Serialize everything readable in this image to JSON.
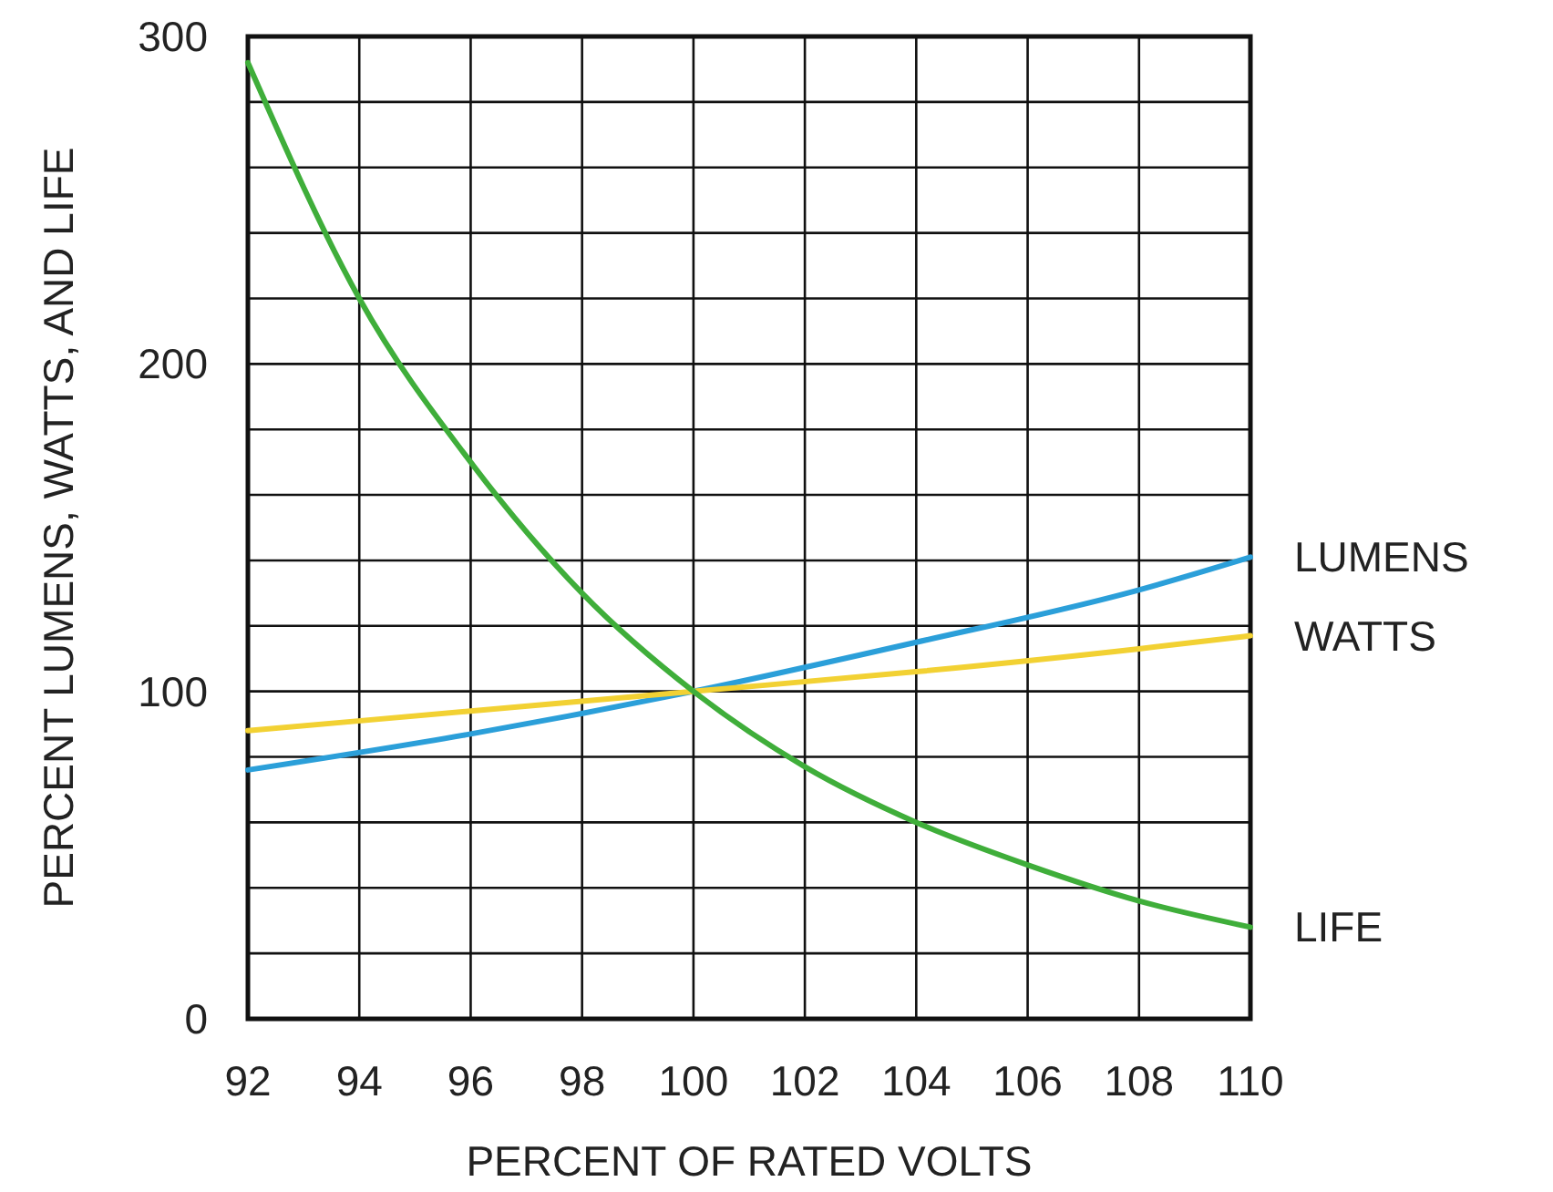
{
  "chart_data": {
    "type": "line",
    "xlabel": "PERCENT OF RATED VOLTS",
    "ylabel": "PERCENT LUMENS, WATTS, AND LIFE",
    "xlim": [
      92,
      110
    ],
    "ylim": [
      0,
      300
    ],
    "xticks": [
      92,
      94,
      96,
      98,
      100,
      102,
      104,
      106,
      108,
      110
    ],
    "yticks": [
      0,
      {
        "value": 20,
        "label": null
      },
      {
        "value": 40,
        "label": null
      },
      {
        "value": 60,
        "label": null
      },
      {
        "value": 80,
        "label": null
      },
      100,
      {
        "value": 120,
        "label": null
      },
      {
        "value": 140,
        "label": null
      },
      {
        "value": 160,
        "label": null
      },
      {
        "value": 180,
        "label": null
      },
      200,
      {
        "value": 220,
        "label": null
      },
      {
        "value": 240,
        "label": null
      },
      {
        "value": 260,
        "label": null
      },
      {
        "value": 280,
        "label": null
      },
      300
    ],
    "grid": true,
    "marker": "none",
    "line_style": "solid",
    "series": [
      {
        "name": "LUMENS",
        "color": "#2b9fd9",
        "x": [
          92,
          96,
          100,
          104,
          108,
          110
        ],
        "values": [
          76,
          87,
          100,
          115,
          131,
          141
        ]
      },
      {
        "name": "WATTS",
        "color": "#f2d133",
        "x": [
          92,
          96,
          100,
          104,
          108,
          110
        ],
        "values": [
          88,
          94,
          100,
          106,
          113,
          117
        ]
      },
      {
        "name": "LIFE",
        "color": "#3fae3a",
        "x": [
          92,
          94,
          96,
          98,
          100,
          102,
          104,
          106,
          108,
          110
        ],
        "values": [
          292,
          220,
          170,
          130,
          100,
          77,
          60,
          47,
          36,
          28
        ]
      }
    ]
  }
}
